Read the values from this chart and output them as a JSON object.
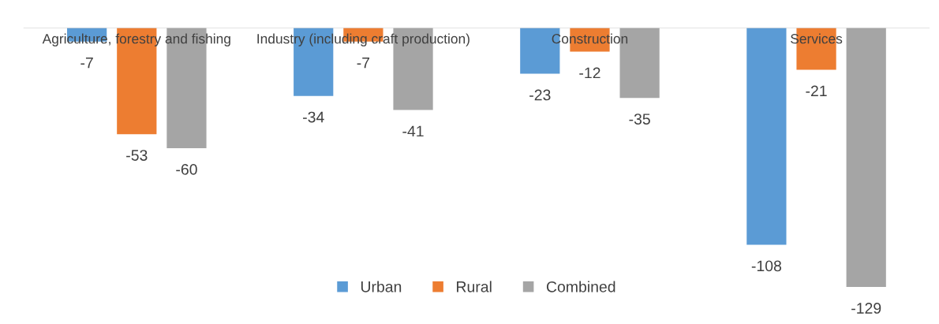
{
  "chart_data": {
    "type": "bar",
    "categories": [
      "Agriculture, forestry and fishing",
      "Industry (including craft production)",
      "Construction",
      "Services"
    ],
    "series": [
      {
        "name": "Urban",
        "color": "#5b9bd5",
        "values": [
          -7,
          -34,
          -23,
          -108
        ]
      },
      {
        "name": "Rural",
        "color": "#ed7d31",
        "values": [
          -53,
          -7,
          -12,
          -21
        ]
      },
      {
        "name": "Combined",
        "color": "#a5a5a5",
        "values": [
          -60,
          -41,
          -35,
          -129
        ]
      }
    ],
    "data_labels": true,
    "legend": "bottom"
  }
}
